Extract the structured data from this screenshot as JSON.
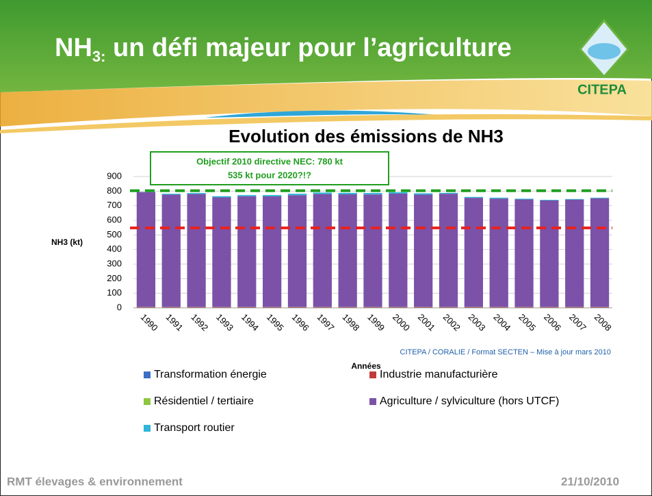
{
  "header": {
    "title_main": "NH",
    "title_sub": "3:",
    "title_rest": " un défi majeur pour l’agriculture"
  },
  "logo": "CITEPA",
  "chart_data": {
    "type": "bar",
    "stacked": true,
    "title": "Evolution des émissions de NH3",
    "y_label": "NH3 (kt)",
    "x_label": "Années",
    "source": "CITEPA / CORALIE / Format SECTEN – Mise à jour mars 2010",
    "annotation": [
      "Objectif 2010 directive NEC:  780 kt",
      "535 kt pour 2020?!?"
    ],
    "categories": [
      "1990",
      "1991",
      "1992",
      "1993",
      "1994",
      "1995",
      "1996",
      "1997",
      "1998",
      "1999",
      "2000",
      "2001",
      "2002",
      "2003",
      "2004",
      "2005",
      "2006",
      "2007",
      "2008"
    ],
    "series": [
      {
        "name": "Transformation énergie",
        "color": "#3b6fc4",
        "values": [
          1,
          1,
          1,
          1,
          1,
          1,
          1,
          1,
          1,
          1,
          1,
          1,
          1,
          1,
          1,
          1,
          1,
          1,
          1
        ]
      },
      {
        "name": "Industrie manufacturière",
        "color": "#c23b3b",
        "values": [
          4,
          4,
          4,
          4,
          4,
          4,
          4,
          4,
          4,
          4,
          4,
          4,
          4,
          4,
          4,
          4,
          4,
          4,
          4
        ]
      },
      {
        "name": "Résidentiel / tertiaire",
        "color": "#8dc63f",
        "values": [
          1,
          1,
          1,
          1,
          1,
          1,
          1,
          1,
          1,
          1,
          1,
          1,
          1,
          1,
          1,
          1,
          1,
          1,
          1
        ]
      },
      {
        "name": "Agriculture / sylviculture (hors UTCF)",
        "color": "#7b52a8",
        "values": [
          787,
          770,
          774,
          751,
          759,
          758,
          766,
          774,
          772,
          771,
          777,
          770,
          776,
          748,
          743,
          737,
          730,
          736,
          745
        ]
      },
      {
        "name": "Transport routier",
        "color": "#2fb5d8",
        "values": [
          2,
          6,
          7,
          8,
          8,
          9,
          10,
          10,
          10,
          10,
          9,
          9,
          6,
          6,
          6,
          5,
          4,
          4,
          4
        ]
      }
    ],
    "reference_lines": [
      {
        "value": 803,
        "color": "#1f9e1f"
      },
      {
        "value": 548,
        "color": "#e8221e"
      }
    ],
    "ylim": [
      0,
      900
    ],
    "yticks": [
      0,
      100,
      200,
      300,
      400,
      500,
      600,
      700,
      800,
      900
    ],
    "grid": true
  },
  "footer": {
    "left": "RMT élevages & environnement",
    "right": "21/10/2010"
  }
}
